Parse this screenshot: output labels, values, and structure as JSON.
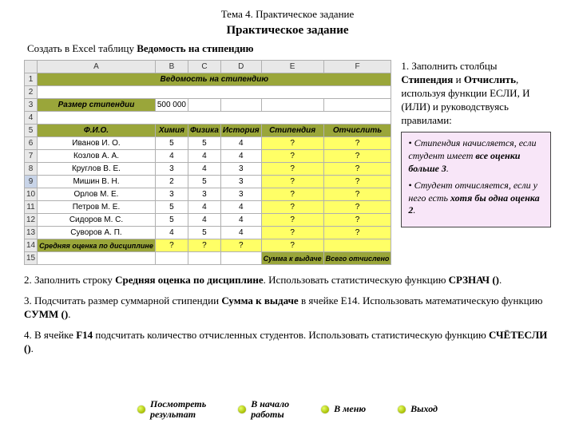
{
  "topic": "Тема 4. Практическое задание",
  "assignment_title": "Практическое задание",
  "intro_prefix": "Создать в Excel таблицу ",
  "intro_bold": "Ведомость на стипендию",
  "excel": {
    "cols": [
      "",
      "A",
      "B",
      "C",
      "D",
      "E",
      "F"
    ],
    "title": "Ведомость на стипендию",
    "size_label": "Размер стипендии",
    "size_value": "500 000",
    "headers": [
      "Ф.И.О.",
      "Химия",
      "Физика",
      "История",
      "Стипендия",
      "Отчислить"
    ],
    "rows": [
      {
        "n": "6",
        "name": "Иванов И. О.",
        "v": [
          "5",
          "5",
          "4",
          "?",
          "?"
        ]
      },
      {
        "n": "7",
        "name": "Козлов А. А.",
        "v": [
          "4",
          "4",
          "4",
          "?",
          "?"
        ]
      },
      {
        "n": "8",
        "name": "Круглов В. Е.",
        "v": [
          "3",
          "4",
          "3",
          "?",
          "?"
        ]
      },
      {
        "n": "9",
        "name": "Мишин В. Н.",
        "v": [
          "2",
          "5",
          "3",
          "?",
          "?"
        ],
        "sel": true
      },
      {
        "n": "10",
        "name": "Орлов М. Е.",
        "v": [
          "3",
          "3",
          "3",
          "?",
          "?"
        ]
      },
      {
        "n": "11",
        "name": "Петров М. Е.",
        "v": [
          "5",
          "4",
          "4",
          "?",
          "?"
        ]
      },
      {
        "n": "12",
        "name": "Сидоров М. С.",
        "v": [
          "5",
          "4",
          "4",
          "?",
          "?"
        ]
      },
      {
        "n": "13",
        "name": "Суворов А. П.",
        "v": [
          "4",
          "5",
          "4",
          "?",
          "?"
        ]
      }
    ],
    "avg_label": "Средняя оценка по дисциплине",
    "avg_vals": [
      "?",
      "?",
      "?",
      "?",
      ""
    ],
    "sum_label": "Сумма к выдаче",
    "total_label": "Всего отчислено"
  },
  "side": {
    "p1a": "1. Заполнить столбцы ",
    "p1b": "Стипендия",
    "p1c": " и ",
    "p1d": "Отчислить",
    "p1e": ", используя функции ЕСЛИ, И (ИЛИ) и руководствуясь правилами:",
    "rule1a": "• Стипендия начисляется, если студент имеет ",
    "rule1b": "все оценки  больше 3",
    "rule1c": ".",
    "rule2a": "• Студент отчисляется, если у него есть ",
    "rule2b": "хотя бы одна оценка 2",
    "rule2c": "."
  },
  "steps": {
    "s2a": "2. Заполнить строку ",
    "s2b": "Средняя оценка по дисциплине",
    "s2c": ". Использовать статистическую функцию ",
    "s2d": "СРЗНАЧ ()",
    "s2e": ".",
    "s3a": "3. Подсчитать размер суммарной стипендии ",
    "s3b": "Сумма к выдаче",
    "s3c": " в ячейке E14. Использовать  математическую функцию ",
    "s3d": "СУММ ()",
    "s3e": ".",
    "s4a": "4. В ячейке ",
    "s4b": "F14",
    "s4c": " подсчитать количество отчисленных студентов. Использовать статистическую функцию ",
    "s4d": "СЧЁТЕСЛИ ()",
    "s4e": "."
  },
  "nav": {
    "result": "Посмотреть\nрезультат",
    "start": "В начало\nработы",
    "menu": "В меню",
    "exit": "Выход"
  },
  "colors": {
    "olive": "#9aa63a",
    "yellow": "#ffff66",
    "rulesbg": "#f8e6f8"
  }
}
